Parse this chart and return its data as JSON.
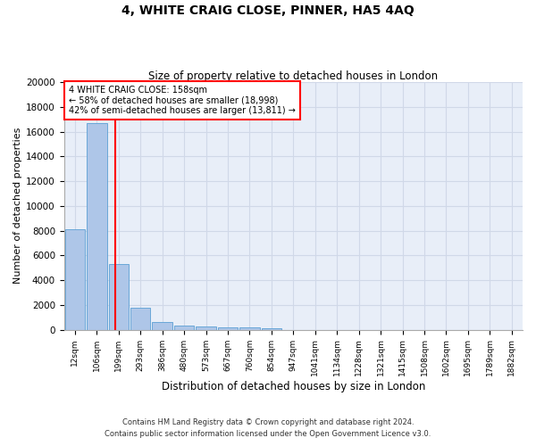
{
  "title": "4, WHITE CRAIG CLOSE, PINNER, HA5 4AQ",
  "subtitle": "Size of property relative to detached houses in London",
  "xlabel": "Distribution of detached houses by size in London",
  "ylabel": "Number of detached properties",
  "footer_line1": "Contains HM Land Registry data © Crown copyright and database right 2024.",
  "footer_line2": "Contains public sector information licensed under the Open Government Licence v3.0.",
  "bar_labels": [
    "12sqm",
    "106sqm",
    "199sqm",
    "293sqm",
    "386sqm",
    "480sqm",
    "573sqm",
    "667sqm",
    "760sqm",
    "854sqm",
    "947sqm",
    "1041sqm",
    "1134sqm",
    "1228sqm",
    "1321sqm",
    "1415sqm",
    "1508sqm",
    "1602sqm",
    "1695sqm",
    "1789sqm",
    "1882sqm"
  ],
  "bar_values": [
    8100,
    16700,
    5300,
    1750,
    650,
    350,
    250,
    175,
    175,
    120,
    0,
    0,
    0,
    0,
    0,
    0,
    0,
    0,
    0,
    0,
    0
  ],
  "bar_color": "#aec6e8",
  "bar_edge_color": "#5a9fd4",
  "grid_color": "#d0d8e8",
  "background_color": "#e8eef8",
  "annotation_text": "4 WHITE CRAIG CLOSE: 158sqm\n← 58% of detached houses are smaller (18,998)\n42% of semi-detached houses are larger (13,811) →",
  "annotation_box_color": "red",
  "vline_x_index": 1.85,
  "ylim": [
    0,
    20000
  ],
  "yticks": [
    0,
    2000,
    4000,
    6000,
    8000,
    10000,
    12000,
    14000,
    16000,
    18000,
    20000
  ],
  "figwidth": 6.0,
  "figheight": 5.0,
  "dpi": 100
}
